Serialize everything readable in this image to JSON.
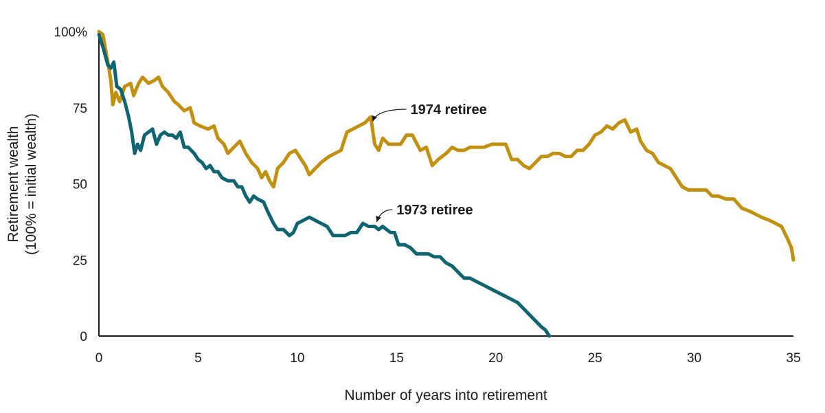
{
  "chart_data": {
    "type": "line",
    "title": "",
    "xlabel": "Number of years into retirement",
    "ylabel_lines": [
      "Retirement wealth",
      "(100% = initial wealth)"
    ],
    "xlim": [
      0,
      35
    ],
    "ylim": [
      0,
      100
    ],
    "x_ticks": [
      {
        "value": 0,
        "label": "0"
      },
      {
        "value": 5,
        "label": "5"
      },
      {
        "value": 10,
        "label": "10"
      },
      {
        "value": 15,
        "label": "15"
      },
      {
        "value": 20,
        "label": "20"
      },
      {
        "value": 25,
        "label": "25"
      },
      {
        "value": 30,
        "label": "30"
      },
      {
        "value": 35,
        "label": "35"
      }
    ],
    "y_ticks": [
      {
        "value": 0,
        "label": "0"
      },
      {
        "value": 25,
        "label": "25"
      },
      {
        "value": 50,
        "label": "50"
      },
      {
        "value": 75,
        "label": "75"
      },
      {
        "value": 100,
        "label": "100%"
      }
    ],
    "grid": false,
    "colors": {
      "retiree_1974": "#C2900F",
      "retiree_1973": "#0E6470",
      "axis": "#1a1a1a"
    },
    "series": [
      {
        "name": "1974 retiree",
        "color": "#C2900F",
        "points": [
          [
            0,
            100
          ],
          [
            0.2,
            99
          ],
          [
            0.45,
            90
          ],
          [
            0.6,
            84
          ],
          [
            0.7,
            76
          ],
          [
            0.85,
            80
          ],
          [
            1.05,
            77
          ],
          [
            1.3,
            82
          ],
          [
            1.6,
            83
          ],
          [
            1.75,
            79
          ],
          [
            2.0,
            83
          ],
          [
            2.2,
            85
          ],
          [
            2.5,
            83
          ],
          [
            2.8,
            84
          ],
          [
            3.0,
            85
          ],
          [
            3.2,
            82
          ],
          [
            3.5,
            80
          ],
          [
            3.8,
            77
          ],
          [
            4.0,
            76
          ],
          [
            4.3,
            74
          ],
          [
            4.6,
            75
          ],
          [
            4.8,
            70
          ],
          [
            5.1,
            69
          ],
          [
            5.5,
            68
          ],
          [
            5.8,
            69
          ],
          [
            6.0,
            65
          ],
          [
            6.3,
            63
          ],
          [
            6.5,
            60
          ],
          [
            6.8,
            62
          ],
          [
            7.1,
            64
          ],
          [
            7.4,
            60
          ],
          [
            7.7,
            57
          ],
          [
            8.0,
            55
          ],
          [
            8.2,
            52
          ],
          [
            8.4,
            54
          ],
          [
            8.6,
            51
          ],
          [
            8.8,
            49
          ],
          [
            9.0,
            55
          ],
          [
            9.3,
            57
          ],
          [
            9.6,
            60
          ],
          [
            9.9,
            61
          ],
          [
            10.2,
            58
          ],
          [
            10.4,
            56
          ],
          [
            10.6,
            53
          ],
          [
            10.9,
            55
          ],
          [
            11.2,
            57
          ],
          [
            11.6,
            59
          ],
          [
            11.9,
            60
          ],
          [
            12.2,
            61
          ],
          [
            12.5,
            67
          ],
          [
            12.8,
            68
          ],
          [
            13.1,
            69
          ],
          [
            13.4,
            70
          ],
          [
            13.7,
            72
          ],
          [
            13.9,
            63
          ],
          [
            14.1,
            61
          ],
          [
            14.3,
            65
          ],
          [
            14.6,
            63
          ],
          [
            14.9,
            63
          ],
          [
            15.2,
            63
          ],
          [
            15.5,
            66
          ],
          [
            15.8,
            66
          ],
          [
            16.2,
            61
          ],
          [
            16.5,
            62
          ],
          [
            16.8,
            56
          ],
          [
            17.1,
            58
          ],
          [
            17.5,
            60
          ],
          [
            17.8,
            62
          ],
          [
            18.1,
            61
          ],
          [
            18.4,
            61
          ],
          [
            18.7,
            62
          ],
          [
            19.0,
            62
          ],
          [
            19.4,
            62
          ],
          [
            19.8,
            63
          ],
          [
            20.2,
            63
          ],
          [
            20.5,
            63
          ],
          [
            20.8,
            58
          ],
          [
            21.1,
            58
          ],
          [
            21.4,
            56
          ],
          [
            21.7,
            55
          ],
          [
            22.0,
            57
          ],
          [
            22.3,
            59
          ],
          [
            22.6,
            59
          ],
          [
            22.9,
            60
          ],
          [
            23.2,
            60
          ],
          [
            23.5,
            59
          ],
          [
            23.8,
            59
          ],
          [
            24.1,
            61
          ],
          [
            24.4,
            61
          ],
          [
            24.7,
            63
          ],
          [
            25.0,
            66
          ],
          [
            25.3,
            67
          ],
          [
            25.6,
            69
          ],
          [
            25.9,
            68
          ],
          [
            26.2,
            70
          ],
          [
            26.5,
            71
          ],
          [
            26.8,
            67
          ],
          [
            27.1,
            68
          ],
          [
            27.3,
            64
          ],
          [
            27.6,
            61
          ],
          [
            27.9,
            60
          ],
          [
            28.2,
            57
          ],
          [
            28.5,
            56
          ],
          [
            28.8,
            55
          ],
          [
            29.1,
            52
          ],
          [
            29.4,
            49
          ],
          [
            29.7,
            48
          ],
          [
            30.0,
            48
          ],
          [
            30.3,
            48
          ],
          [
            30.6,
            48
          ],
          [
            30.9,
            46
          ],
          [
            31.2,
            46
          ],
          [
            31.6,
            45
          ],
          [
            32.0,
            45
          ],
          [
            32.4,
            42
          ],
          [
            32.8,
            41
          ],
          [
            33.1,
            40
          ],
          [
            33.4,
            39
          ],
          [
            33.8,
            38
          ],
          [
            34.1,
            37
          ],
          [
            34.4,
            36
          ],
          [
            34.7,
            32
          ],
          [
            34.9,
            29
          ],
          [
            35.0,
            25
          ]
        ]
      },
      {
        "name": "1973 retiree",
        "color": "#0E6470",
        "points": [
          [
            0,
            99
          ],
          [
            0.2,
            95
          ],
          [
            0.45,
            89
          ],
          [
            0.6,
            88
          ],
          [
            0.75,
            90
          ],
          [
            0.9,
            82
          ],
          [
            1.1,
            81
          ],
          [
            1.3,
            77
          ],
          [
            1.5,
            72
          ],
          [
            1.65,
            67
          ],
          [
            1.8,
            60
          ],
          [
            1.95,
            63
          ],
          [
            2.1,
            61
          ],
          [
            2.3,
            66
          ],
          [
            2.5,
            67
          ],
          [
            2.7,
            68
          ],
          [
            2.9,
            63
          ],
          [
            3.1,
            66
          ],
          [
            3.3,
            67
          ],
          [
            3.5,
            66
          ],
          [
            3.7,
            66
          ],
          [
            3.9,
            65
          ],
          [
            4.1,
            67
          ],
          [
            4.3,
            62
          ],
          [
            4.5,
            62
          ],
          [
            4.8,
            60
          ],
          [
            5.0,
            58
          ],
          [
            5.2,
            57
          ],
          [
            5.4,
            55
          ],
          [
            5.6,
            56
          ],
          [
            5.8,
            54
          ],
          [
            6.0,
            54
          ],
          [
            6.2,
            52
          ],
          [
            6.5,
            51
          ],
          [
            6.8,
            51
          ],
          [
            7.0,
            49
          ],
          [
            7.2,
            49
          ],
          [
            7.4,
            46
          ],
          [
            7.6,
            44
          ],
          [
            7.8,
            46
          ],
          [
            8.0,
            45
          ],
          [
            8.3,
            44
          ],
          [
            8.5,
            41
          ],
          [
            8.8,
            37
          ],
          [
            9.0,
            35
          ],
          [
            9.3,
            35
          ],
          [
            9.6,
            33
          ],
          [
            9.8,
            34
          ],
          [
            10.0,
            37
          ],
          [
            10.3,
            38
          ],
          [
            10.6,
            39
          ],
          [
            10.9,
            38
          ],
          [
            11.2,
            37
          ],
          [
            11.5,
            36
          ],
          [
            11.8,
            33
          ],
          [
            12.1,
            33
          ],
          [
            12.4,
            33
          ],
          [
            12.7,
            34
          ],
          [
            13.0,
            34
          ],
          [
            13.3,
            37
          ],
          [
            13.6,
            36
          ],
          [
            13.9,
            36
          ],
          [
            14.1,
            35
          ],
          [
            14.3,
            36
          ],
          [
            14.5,
            35
          ],
          [
            14.7,
            34
          ],
          [
            14.9,
            34
          ],
          [
            15.1,
            30
          ],
          [
            15.4,
            30
          ],
          [
            15.7,
            29
          ],
          [
            16.0,
            27
          ],
          [
            16.3,
            27
          ],
          [
            16.6,
            27
          ],
          [
            16.9,
            26
          ],
          [
            17.2,
            26
          ],
          [
            17.5,
            24
          ],
          [
            17.8,
            23
          ],
          [
            18.1,
            21
          ],
          [
            18.4,
            19
          ],
          [
            18.7,
            19
          ],
          [
            19.0,
            18
          ],
          [
            19.3,
            17
          ],
          [
            19.6,
            16
          ],
          [
            19.9,
            15
          ],
          [
            20.2,
            14
          ],
          [
            20.5,
            13
          ],
          [
            20.8,
            12
          ],
          [
            21.1,
            11
          ],
          [
            21.4,
            9
          ],
          [
            21.7,
            7
          ],
          [
            22.0,
            5
          ],
          [
            22.3,
            3
          ],
          [
            22.5,
            2
          ],
          [
            22.7,
            0
          ]
        ]
      }
    ],
    "annotations": [
      {
        "text": "1974 retiree",
        "series": "1974 retiree",
        "target": [
          13.8,
          70.5
        ],
        "anchor": [
          15.7,
          74.5
        ]
      },
      {
        "text": "1973 retiree",
        "series": "1973 retiree",
        "target": [
          14.0,
          37.5
        ],
        "anchor": [
          15.0,
          41.5
        ]
      }
    ]
  }
}
